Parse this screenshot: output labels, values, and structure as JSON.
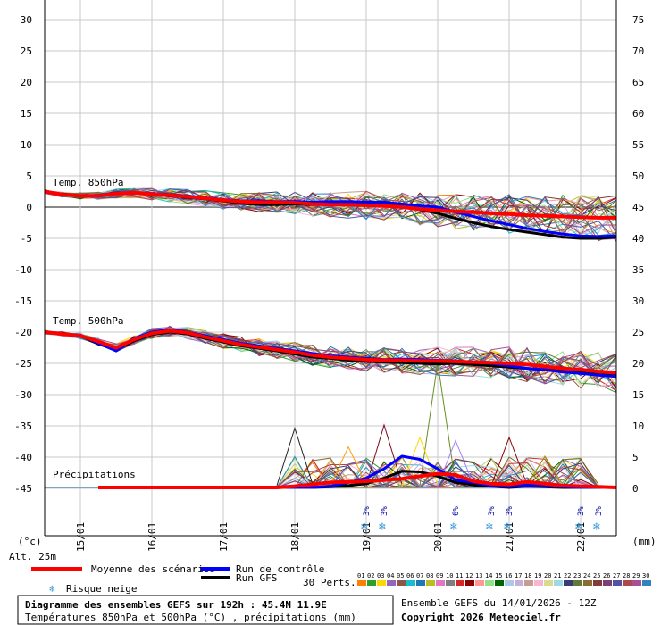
{
  "chart_data": {
    "type": "line",
    "title": "Diagramme des ensembles GEFS sur 192h : 45.4N 11.9E",
    "subtitle": "Températures 850hPa et 500hPa (°C) , précipitations (mm)",
    "run_label": "Ensemble GEFS du 14/01/2026 - 12Z",
    "copyright": "Copyright 2026 Meteociel.fr",
    "left_axis_unit": "(°c)",
    "right_axis_unit": "(mm)",
    "altitude": "Alt. 25m",
    "left_ticks": [
      30,
      25,
      20,
      15,
      10,
      5,
      0,
      -5,
      -10,
      -15,
      -20,
      -25,
      -30,
      -35,
      -40,
      -45
    ],
    "right_ticks": [
      75,
      70,
      65,
      60,
      55,
      50,
      45,
      40,
      35,
      30,
      25,
      20,
      15,
      10,
      5,
      0
    ],
    "left_range": [
      -50,
      33
    ],
    "x_range_hours": [
      0,
      192
    ],
    "date_ticks": [
      {
        "label": "15/01",
        "hour": 12
      },
      {
        "label": "16/01",
        "hour": 36
      },
      {
        "label": "17/01",
        "hour": 60
      },
      {
        "label": "18/01",
        "hour": 84
      },
      {
        "label": "19/01",
        "hour": 108
      },
      {
        "label": "20/01",
        "hour": 132
      },
      {
        "label": "21/01",
        "hour": 156
      },
      {
        "label": "22/01",
        "hour": 180
      }
    ],
    "section_labels": [
      "Temp. 850hPa",
      "Temp. 500hPa",
      "Précipitations"
    ],
    "x_hours": [
      0,
      6,
      12,
      18,
      24,
      30,
      36,
      42,
      48,
      54,
      60,
      66,
      72,
      78,
      84,
      90,
      96,
      102,
      108,
      114,
      120,
      126,
      132,
      138,
      144,
      150,
      156,
      162,
      168,
      174,
      180,
      186,
      192
    ],
    "t850_mean": [
      2.5,
      2.0,
      1.8,
      1.8,
      2.2,
      2.3,
      2.1,
      1.9,
      1.7,
      1.4,
      1.1,
      0.9,
      0.8,
      0.8,
      0.7,
      0.5,
      0.4,
      0.4,
      0.3,
      0.2,
      0.0,
      -0.3,
      -0.5,
      -0.7,
      -0.8,
      -1.0,
      -1.1,
      -1.3,
      -1.4,
      -1.5,
      -1.6,
      -1.7,
      -1.7
    ],
    "t850_control": [
      2.5,
      2.0,
      1.8,
      1.9,
      2.3,
      2.3,
      2.2,
      2.0,
      1.8,
      1.5,
      1.2,
      1.0,
      1.0,
      0.9,
      0.9,
      0.8,
      0.9,
      0.9,
      0.8,
      0.8,
      0.5,
      0.2,
      0.0,
      -0.8,
      -1.5,
      -2.2,
      -2.8,
      -3.4,
      -3.9,
      -4.3,
      -4.6,
      -4.7,
      -4.6
    ],
    "t850_gfs": [
      2.5,
      2.1,
      1.8,
      1.8,
      2.2,
      2.3,
      2.1,
      1.8,
      1.6,
      1.3,
      1.0,
      0.6,
      0.4,
      0.4,
      0.5,
      0.4,
      0.5,
      0.6,
      0.6,
      0.5,
      0.1,
      -0.4,
      -1.0,
      -1.8,
      -2.5,
      -3.1,
      -3.6,
      -4.0,
      -4.4,
      -4.8,
      -5.0,
      -5.0,
      -4.8
    ],
    "t500_mean": [
      -20.0,
      -20.3,
      -20.6,
      -21.5,
      -22.5,
      -21.2,
      -20.2,
      -19.8,
      -20.1,
      -20.8,
      -21.4,
      -22.0,
      -22.4,
      -22.8,
      -23.2,
      -23.7,
      -24.0,
      -24.2,
      -24.4,
      -24.5,
      -24.5,
      -24.6,
      -24.6,
      -24.7,
      -24.8,
      -24.9,
      -25.0,
      -25.2,
      -25.5,
      -25.8,
      -26.0,
      -26.3,
      -26.5
    ],
    "t500_control": [
      -20.0,
      -20.3,
      -20.5,
      -21.8,
      -23.0,
      -21.0,
      -20.0,
      -19.6,
      -20.0,
      -20.6,
      -21.2,
      -21.8,
      -22.2,
      -22.6,
      -23.0,
      -23.4,
      -23.8,
      -24.0,
      -24.2,
      -24.4,
      -24.3,
      -24.4,
      -24.5,
      -24.6,
      -24.8,
      -25.0,
      -25.4,
      -25.8,
      -26.0,
      -26.4,
      -26.6,
      -26.9,
      -27.1
    ],
    "t500_gfs": [
      -20.0,
      -20.2,
      -20.6,
      -21.9,
      -22.8,
      -21.4,
      -20.4,
      -20.0,
      -20.3,
      -21.0,
      -21.6,
      -22.2,
      -22.6,
      -23.0,
      -23.5,
      -24.0,
      -24.2,
      -24.5,
      -24.7,
      -24.8,
      -24.9,
      -25.0,
      -25.1,
      -25.0,
      -25.2,
      -25.4,
      -25.6,
      -25.8,
      -26.0,
      -26.2,
      -26.5,
      -26.8,
      -27.0
    ],
    "precip_mean": [
      0,
      0,
      0,
      0,
      0,
      0,
      0,
      0,
      0,
      0,
      0,
      0,
      0,
      0,
      0.2,
      0.5,
      0.8,
      0.9,
      1.0,
      1.2,
      1.4,
      1.8,
      2.2,
      2.0,
      1.0,
      0.6,
      0.5,
      0.9,
      0.6,
      0.3,
      0.2,
      0.1,
      0.0
    ],
    "precip_control": [
      0,
      0,
      0,
      0,
      0,
      0,
      0,
      0,
      0,
      0,
      0,
      0,
      0,
      0,
      0,
      0,
      0.2,
      0.8,
      1.5,
      3.0,
      5.0,
      4.5,
      3.0,
      1.2,
      0.8,
      0.3,
      0.1,
      0.4,
      0.2,
      0.1,
      0,
      0,
      0
    ],
    "precip_gfs": [
      0,
      0,
      0,
      0,
      0,
      0,
      0,
      0,
      0,
      0,
      0,
      0,
      0,
      0,
      0,
      0,
      0.1,
      0.3,
      0.6,
      1.5,
      2.6,
      2.5,
      1.8,
      0.8,
      0.4,
      0.2,
      0.0,
      0.2,
      0.1,
      0.0,
      0,
      0,
      0
    ],
    "precip_members_peaks": [
      {
        "hour": 132,
        "value": 20,
        "color": "#6b8e23"
      },
      {
        "hour": 114,
        "value": 10,
        "color": "#7a0a1e"
      },
      {
        "hour": 84,
        "value": 9.5,
        "color": "#222222"
      },
      {
        "hour": 156,
        "value": 8,
        "color": "#8b0000"
      },
      {
        "hour": 126,
        "value": 8,
        "color": "#ffd700"
      },
      {
        "hour": 138,
        "value": 7.5,
        "color": "#a080ff"
      },
      {
        "hour": 102,
        "value": 6.5,
        "color": "#ffa000"
      },
      {
        "hour": 168,
        "value": 5,
        "color": "#b38b00"
      },
      {
        "hour": 180,
        "value": 4.5,
        "color": "#8b4513"
      }
    ],
    "snow_risk": [
      {
        "hour": 108,
        "label": "3%"
      },
      {
        "hour": 114,
        "label": "3%"
      },
      {
        "hour": 138,
        "label": "6%"
      },
      {
        "hour": 150,
        "label": "3%"
      },
      {
        "hour": 156,
        "label": "3%"
      },
      {
        "hour": 180,
        "label": "3%"
      },
      {
        "hour": 186,
        "label": "3%"
      }
    ],
    "legend": {
      "mean": "Moyenne des scénarios",
      "control": "Run de contrôle",
      "gfs": "Run GFS",
      "snow": "Risque neige",
      "perts": "30 Perts.",
      "member_numbers": [
        "01",
        "02",
        "03",
        "04",
        "05",
        "06",
        "07",
        "08",
        "09",
        "10",
        "11",
        "12",
        "13",
        "14",
        "15",
        "16",
        "17",
        "18",
        "19",
        "20",
        "21",
        "22",
        "23",
        "24",
        "25",
        "26",
        "27",
        "28",
        "29",
        "30"
      ]
    },
    "colors": {
      "mean": "#ff0000",
      "control": "#0000ff",
      "gfs": "#000000",
      "grid": "#c8c8c8",
      "members": [
        "#ff7f00",
        "#2ca02c",
        "#ffd700",
        "#9467bd",
        "#8c564b",
        "#17becf",
        "#1f77b4",
        "#bcbd22",
        "#e377c2",
        "#7f7f7f",
        "#d62728",
        "#8b0000",
        "#ff9896",
        "#98df8a",
        "#006400",
        "#aec7e8",
        "#c5b0d5",
        "#c49c94",
        "#f7b6d2",
        "#dbdb8d",
        "#9edae5",
        "#393b79",
        "#637939",
        "#8c6d31",
        "#843c39",
        "#7b4173",
        "#5254a3",
        "#ad494a",
        "#a55194",
        "#3182bd"
      ]
    }
  }
}
